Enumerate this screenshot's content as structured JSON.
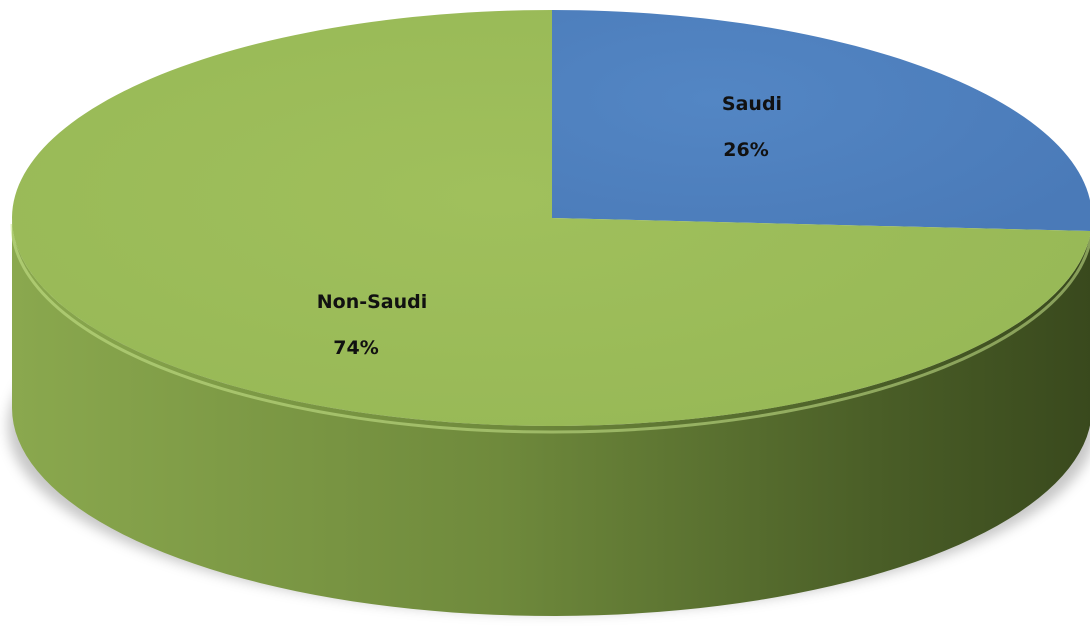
{
  "chart_data": {
    "type": "pie",
    "style": "3d",
    "title": "",
    "slices": [
      {
        "label": "Saudi",
        "value": 26,
        "percent_label": "26%",
        "color": "#4f81bd"
      },
      {
        "label": "Non-Saudi",
        "value": 74,
        "percent_label": "74%",
        "color": "#9bbb59"
      }
    ],
    "legend": "none",
    "data_labels": "inside"
  }
}
